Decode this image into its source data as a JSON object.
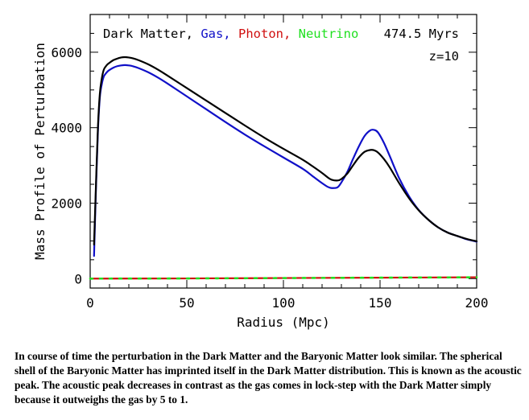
{
  "chart_data": {
    "type": "line",
    "title_parts": [
      {
        "text": "Dark Matter,",
        "color": "#000000"
      },
      {
        "text": "Gas,",
        "color": "#1010c8"
      },
      {
        "text": "Photon,",
        "color": "#d01010"
      },
      {
        "text": "Neutrino",
        "color": "#20e020"
      }
    ],
    "time_label": "474.5 Myrs",
    "redshift_label": "z=10",
    "xlabel": "Radius (Mpc)",
    "ylabel": "Mass Profile of Perturbation",
    "xlim": [
      0,
      200
    ],
    "ylim": [
      -250,
      7000
    ],
    "xticks": [
      0,
      50,
      100,
      150,
      200
    ],
    "yticks": [
      0,
      2000,
      4000,
      6000
    ],
    "grid": false,
    "series": [
      {
        "name": "Dark Matter",
        "color": "#000000",
        "x": [
          2,
          3,
          4,
          5,
          6,
          7,
          8,
          9,
          10,
          12,
          14,
          16,
          18,
          20,
          22,
          25,
          30,
          35,
          40,
          50,
          60,
          70,
          80,
          90,
          100,
          110,
          115,
          120,
          123,
          125,
          128,
          130,
          133,
          136,
          139,
          142,
          145,
          147,
          149,
          152,
          155,
          160,
          165,
          170,
          175,
          180,
          185,
          190,
          195,
          200
        ],
        "y": [
          900,
          2500,
          4000,
          4900,
          5300,
          5530,
          5620,
          5680,
          5720,
          5790,
          5830,
          5860,
          5870,
          5860,
          5840,
          5790,
          5680,
          5540,
          5380,
          5050,
          4720,
          4390,
          4060,
          3740,
          3440,
          3150,
          2980,
          2800,
          2680,
          2620,
          2600,
          2640,
          2780,
          3000,
          3210,
          3360,
          3410,
          3400,
          3340,
          3170,
          2950,
          2520,
          2130,
          1810,
          1560,
          1360,
          1220,
          1130,
          1050,
          990
        ]
      },
      {
        "name": "Gas",
        "color": "#1010c8",
        "x": [
          2,
          3,
          4,
          5,
          6,
          7,
          8,
          9,
          10,
          12,
          14,
          16,
          18,
          20,
          22,
          25,
          30,
          35,
          40,
          50,
          60,
          70,
          80,
          90,
          100,
          110,
          115,
          120,
          123,
          125,
          128,
          130,
          133,
          136,
          139,
          142,
          145,
          147,
          149,
          152,
          155,
          160,
          165,
          170,
          175,
          180,
          185,
          190,
          195,
          200
        ],
        "y": [
          600,
          2400,
          3900,
          4800,
          5150,
          5350,
          5430,
          5490,
          5530,
          5590,
          5630,
          5650,
          5660,
          5650,
          5630,
          5580,
          5470,
          5330,
          5170,
          4830,
          4490,
          4150,
          3820,
          3510,
          3210,
          2910,
          2720,
          2530,
          2430,
          2400,
          2420,
          2550,
          2820,
          3170,
          3500,
          3780,
          3930,
          3940,
          3870,
          3600,
          3250,
          2650,
          2180,
          1820,
          1560,
          1360,
          1220,
          1130,
          1040,
          980
        ]
      },
      {
        "name": "Photon",
        "color": "#d01010",
        "x": [
          0,
          50,
          100,
          150,
          200
        ],
        "y": [
          0,
          5,
          15,
          25,
          35
        ]
      },
      {
        "name": "Neutrino",
        "color": "#20e020",
        "x": [
          0,
          50,
          100,
          150,
          200
        ],
        "y": [
          0,
          5,
          15,
          25,
          35
        ]
      }
    ]
  },
  "caption": "In course of time the perturbation in the Dark Matter and the Baryonic Matter look similar. The spherical shell of the Baryonic Matter has imprinted itself in the Dark Matter distribution. This is known as the acoustic peak. The acoustic peak decreases in contrast as the gas comes in lock-step with the Dark Matter simply because it outweighs the gas by 5 to 1."
}
